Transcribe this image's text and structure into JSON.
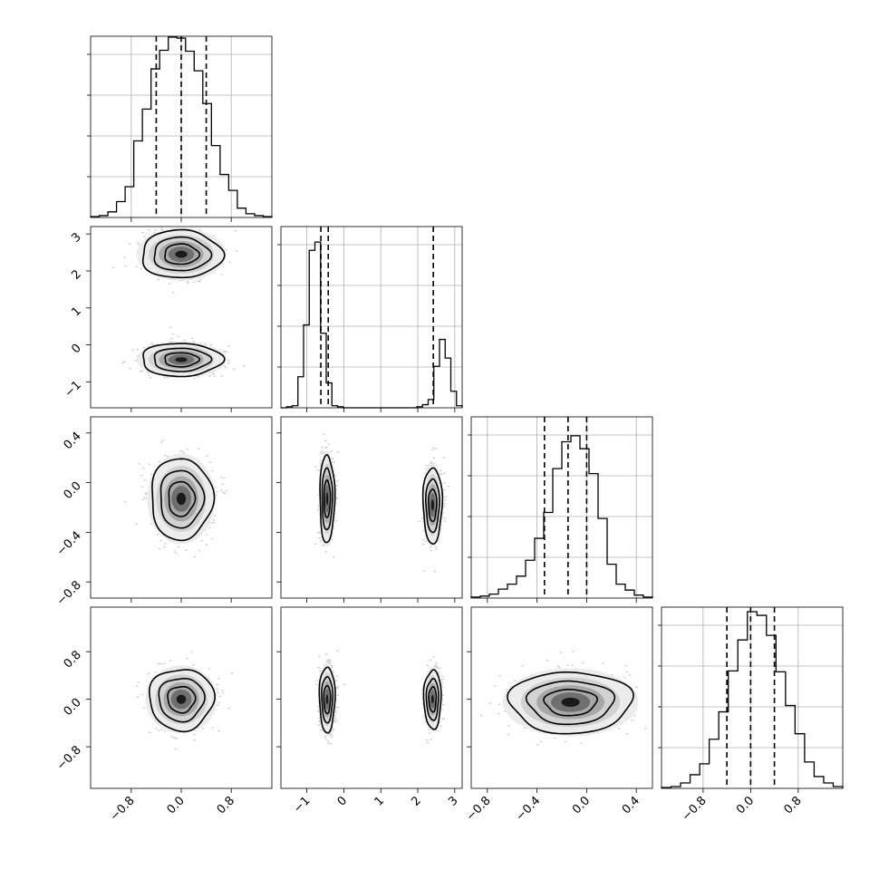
{
  "chart_data": {
    "type": "corner",
    "grid": true,
    "dims": [
      {
        "ticks": [
          -0.8,
          0.0,
          0.8
        ],
        "tick_labels": [
          "−0.8",
          "0.0",
          "0.8"
        ],
        "range": [
          -1.45,
          1.45
        ],
        "quantiles": [
          -0.4,
          0.0,
          0.4
        ]
      },
      {
        "ticks": [
          -1,
          0,
          1,
          2,
          3
        ],
        "tick_labels": [
          "−1",
          "0",
          "1",
          "2",
          "3"
        ],
        "range": [
          -1.7,
          3.2
        ],
        "quantiles": [
          -0.62,
          -0.42,
          2.42
        ]
      },
      {
        "ticks": [
          -0.8,
          -0.4,
          0.0,
          0.4
        ],
        "tick_labels": [
          "−0.8",
          "−0.4",
          "0.0",
          "0.4"
        ],
        "range": [
          -0.93,
          0.53
        ],
        "quantiles": [
          -0.34,
          -0.15,
          0.0
        ]
      },
      {
        "ticks": [
          -0.8,
          0.0,
          0.8
        ],
        "tick_labels": [
          "−0.8",
          "0.0",
          "0.8"
        ],
        "range": [
          -1.5,
          1.55
        ],
        "quantiles": [
          -0.4,
          0.0,
          0.4
        ]
      }
    ],
    "histograms": [
      {
        "bins": [
          -1.45,
          1.45
        ],
        "counts": [
          1,
          2,
          6,
          17,
          33,
          82,
          116,
          159,
          179,
          193,
          192,
          178,
          157,
          122,
          77,
          46,
          29,
          10,
          4,
          2,
          1
        ],
        "ylim": [
          0,
          194
        ]
      },
      {
        "bins": [
          -1.7,
          3.2
        ],
        "counts": [
          0,
          1,
          2,
          30,
          80,
          152,
          160,
          72,
          24,
          2,
          1,
          0,
          0,
          0,
          0,
          0,
          0,
          0,
          0,
          0,
          0,
          0,
          0,
          0,
          1,
          3,
          8,
          40,
          66,
          48,
          16,
          2
        ],
        "ylim": [
          0,
          175
        ]
      },
      {
        "bins": [
          -0.93,
          0.53
        ],
        "counts": [
          1,
          2,
          4,
          9,
          14,
          22,
          38,
          60,
          86,
          130,
          157,
          163,
          150,
          125,
          80,
          34,
          14,
          8,
          3,
          1
        ],
        "ylim": [
          0,
          182
        ]
      },
      {
        "bins": [
          -1.5,
          1.55
        ],
        "counts": [
          1,
          2,
          6,
          15,
          27,
          54,
          84,
          129,
          163,
          194,
          190,
          168,
          128,
          91,
          60,
          29,
          13,
          6,
          2
        ],
        "ylim": [
          0,
          199
        ]
      }
    ],
    "contours": [
      {
        "row": 1,
        "col": 0,
        "clusters": [
          {
            "cx": 0.0,
            "cy": 2.45,
            "rx": 0.55,
            "ry": 0.55
          },
          {
            "cx": 0.0,
            "cy": -0.4,
            "rx": 0.55,
            "ry": 0.38
          }
        ]
      },
      {
        "row": 2,
        "col": 0,
        "clusters": [
          {
            "cx": 0.0,
            "cy": -0.13,
            "rx": 0.42,
            "ry": 0.28
          }
        ]
      },
      {
        "row": 2,
        "col": 1,
        "clusters": [
          {
            "cx": -0.45,
            "cy": -0.13,
            "rx": 0.17,
            "ry": 0.3
          },
          {
            "cx": 2.4,
            "cy": -0.18,
            "rx": 0.22,
            "ry": 0.26
          }
        ]
      },
      {
        "row": 3,
        "col": 0,
        "clusters": [
          {
            "cx": 0.0,
            "cy": 0.0,
            "rx": 0.44,
            "ry": 0.44
          }
        ]
      },
      {
        "row": 3,
        "col": 1,
        "clusters": [
          {
            "cx": -0.45,
            "cy": 0.0,
            "rx": 0.18,
            "ry": 0.47
          },
          {
            "cx": 2.4,
            "cy": 0.0,
            "rx": 0.2,
            "ry": 0.42
          }
        ]
      },
      {
        "row": 3,
        "col": 2,
        "clusters": [
          {
            "cx": -0.13,
            "cy": -0.05,
            "rx": 0.42,
            "ry": 0.44
          }
        ]
      }
    ]
  }
}
